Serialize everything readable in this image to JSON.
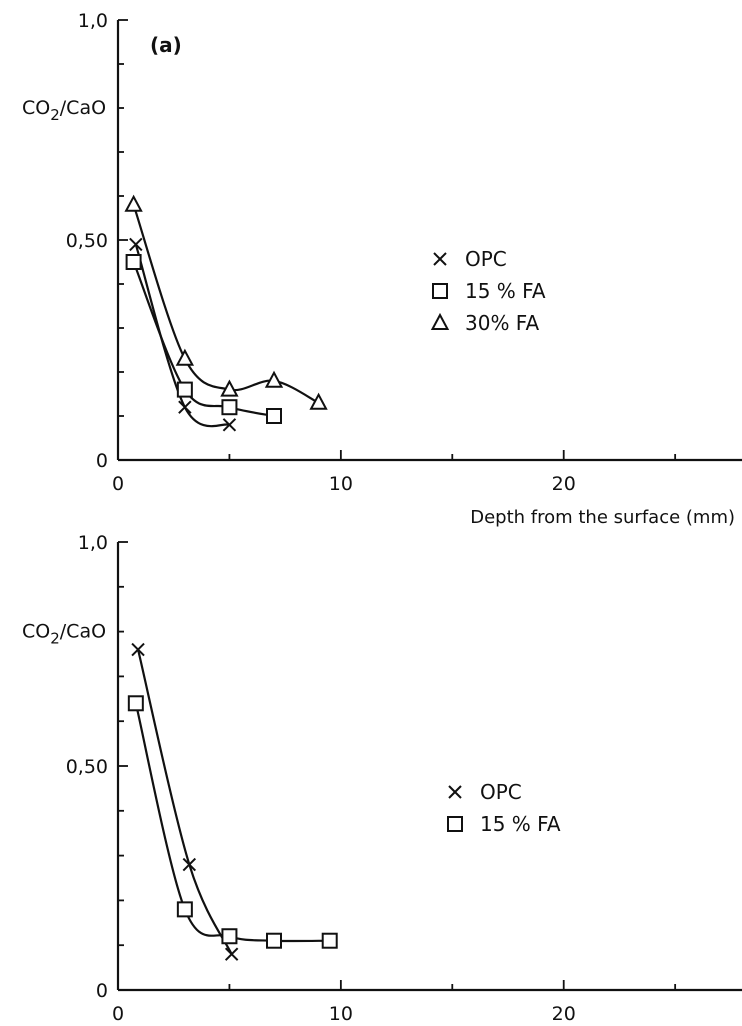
{
  "chart_data": [
    {
      "type": "scatter",
      "panel_label": "(a)",
      "ylabel_main": "CO",
      "ylabel_sub": "2",
      "ylabel_tail": "/CaO",
      "xlabel": "Depth from the surface (mm)",
      "xlim": [
        0,
        28
      ],
      "ylim": [
        0,
        1.0
      ],
      "x_ticks": [
        0,
        10,
        20
      ],
      "x_tick_labels": [
        "0",
        "10",
        "20"
      ],
      "y_ticks": [
        0,
        0.5,
        1.0
      ],
      "y_tick_labels": [
        "0",
        "0,50",
        "1,0"
      ],
      "y_minor_step": 0.1,
      "x_minor_step": 5,
      "legend_position": "right",
      "series": [
        {
          "name": "OPC",
          "marker": "x",
          "x": [
            0.8,
            3.0,
            5.0
          ],
          "y": [
            0.49,
            0.12,
            0.08
          ]
        },
        {
          "name": "15% FA",
          "marker": "square",
          "x": [
            0.7,
            3.0,
            5.0,
            7.0
          ],
          "y": [
            0.45,
            0.16,
            0.12,
            0.1
          ]
        },
        {
          "name": "30% FA",
          "marker": "triangle",
          "x": [
            0.7,
            3.0,
            5.0,
            7.0,
            9.0
          ],
          "y": [
            0.58,
            0.23,
            0.16,
            0.18,
            0.13
          ]
        }
      ],
      "legend_labels": [
        "OPC",
        "15 % FA",
        "30% FA"
      ]
    },
    {
      "type": "scatter",
      "panel_label": "",
      "ylabel_main": "CO",
      "ylabel_sub": "2",
      "ylabel_tail": "/CaO",
      "xlabel": "",
      "xlim": [
        0,
        28
      ],
      "ylim": [
        0,
        1.0
      ],
      "x_ticks": [
        0,
        10,
        20
      ],
      "x_tick_labels": [
        "0",
        "10",
        "20"
      ],
      "y_ticks": [
        0,
        0.5,
        1.0
      ],
      "y_tick_labels": [
        "0",
        "0,50",
        "1,0"
      ],
      "y_minor_step": 0.1,
      "x_minor_step": 5,
      "legend_position": "right",
      "series": [
        {
          "name": "OPC",
          "marker": "x",
          "x": [
            0.9,
            3.2,
            5.1
          ],
          "y": [
            0.76,
            0.28,
            0.08
          ]
        },
        {
          "name": "15% FA",
          "marker": "square",
          "x": [
            0.8,
            3.0,
            5.0,
            7.0,
            9.5
          ],
          "y": [
            0.64,
            0.18,
            0.12,
            0.11,
            0.11
          ]
        }
      ],
      "legend_labels": [
        "OPC",
        "15 % FA"
      ]
    }
  ]
}
